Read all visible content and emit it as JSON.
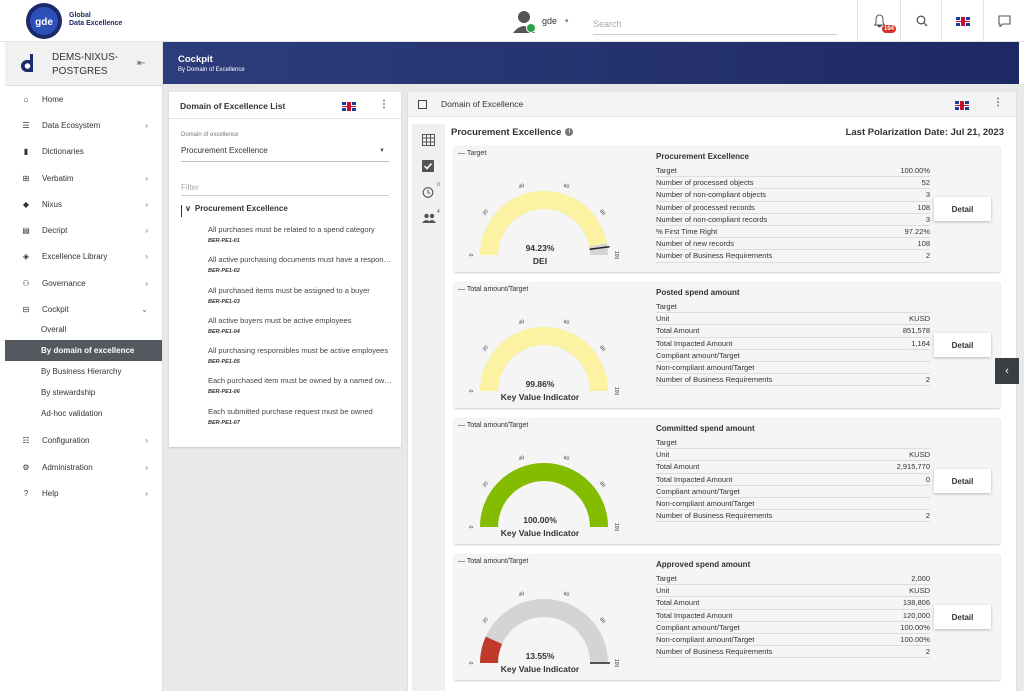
{
  "brand": {
    "line1": "Global",
    "line2": "Data Excellence",
    "logo_text": "gde"
  },
  "topbar": {
    "user_name": "gde",
    "search_placeholder": "Search",
    "notification_count": "104"
  },
  "sidebar": {
    "instance": "DEMS-NIXUS-POSTGRES",
    "items": [
      {
        "label": "Home",
        "icon": "home-icon",
        "glyph": "⌂",
        "has_children": false
      },
      {
        "label": "Data Ecosystem",
        "icon": "list-icon",
        "glyph": "☰",
        "has_children": true
      },
      {
        "label": "Dictionaries",
        "icon": "book-icon",
        "glyph": "▮",
        "has_children": false
      },
      {
        "label": "Verbatim",
        "icon": "open-book-icon",
        "glyph": "⊞",
        "has_children": true
      },
      {
        "label": "Nixus",
        "icon": "cube-icon",
        "glyph": "◆",
        "has_children": true
      },
      {
        "label": "Decript",
        "icon": "document-icon",
        "glyph": "▤",
        "has_children": true
      },
      {
        "label": "Excellence Library",
        "icon": "diamond-icon",
        "glyph": "◈",
        "has_children": true
      },
      {
        "label": "Governance",
        "icon": "people-icon",
        "glyph": "⚇",
        "has_children": true
      },
      {
        "label": "Cockpit",
        "icon": "dashboard-icon",
        "glyph": "⊟",
        "has_children": true,
        "expanded": true
      }
    ],
    "cockpit_sub": [
      "Overall",
      "By domain of excellence",
      "By Business Hierarchy",
      "By stewardship",
      "Ad-hoc validation"
    ],
    "active_sub": "By domain of excellence",
    "items_after": [
      {
        "label": "Configuration",
        "icon": "sliders-icon",
        "glyph": "☷"
      },
      {
        "label": "Administration",
        "icon": "gear-icon",
        "glyph": "⚙"
      },
      {
        "label": "Help",
        "icon": "help-icon",
        "glyph": "?"
      }
    ]
  },
  "header": {
    "title": "Cockpit",
    "subtitle": "By Domain of Excellence"
  },
  "list_panel": {
    "title": "Domain of Excellence List",
    "select_label": "Domain of excellence",
    "select_value": "Procurement Excellence",
    "filter_placeholder": "Filter",
    "tree_root": "Procurement Excellence",
    "rules": [
      {
        "text": "All purchases must be related to a spend category",
        "code": "BER-PE1-01"
      },
      {
        "text": "All active purchasing documents must have a responsible",
        "code": "BER-PE1-02"
      },
      {
        "text": "All purchased items must be assigned to a buyer",
        "code": "BER-PE1-03"
      },
      {
        "text": "All active buyers must be active employees",
        "code": "BER-PE1-04"
      },
      {
        "text": "All purchasing responsibles must be active employees",
        "code": "BER-PE1-05"
      },
      {
        "text": "Each purchased item must be owned by a named owner",
        "code": "BER-PE1-06"
      },
      {
        "text": "Each submitted purchase request must be owned",
        "code": "BER-PE1-07"
      }
    ]
  },
  "main_panel": {
    "title": "Domain of Excellence",
    "section_title": "Procurement Excellence",
    "polarization": "Last Polarization Date: Jul 21, 2023",
    "tool_badges": {
      "alarm": "0",
      "people": "4"
    }
  },
  "cards": [
    {
      "legend": "— Target",
      "gauge": {
        "value": 94.23,
        "label": "94.23%",
        "name": "DEI",
        "fill": "#fbf3a2",
        "rest": "#d4d4d4",
        "marker": 96
      },
      "ticks": [
        "0",
        "20",
        "40",
        "60",
        "80",
        "100"
      ],
      "title": "Procurement Excellence",
      "rows": [
        [
          "Target",
          "100.00%"
        ],
        [
          "Number of processed objects",
          "52"
        ],
        [
          "Number of non-compliant objects",
          "3"
        ],
        [
          "Number of processed records",
          "108"
        ],
        [
          "Number of non-compliant records",
          "3"
        ],
        [
          "% First Time Right",
          "97.22%"
        ],
        [
          "Number of new records",
          "108"
        ],
        [
          "Number of Business Requirements",
          "2"
        ]
      ],
      "detail": "Detail"
    },
    {
      "legend": "— Total amount/Target",
      "gauge": {
        "value": 99.86,
        "label": "99.86%",
        "name": "Key Value Indicator",
        "fill": "#fbf3a2",
        "rest": "#d4d4d4",
        "marker": null
      },
      "ticks": [
        "0",
        "20",
        "40",
        "60",
        "80",
        "100"
      ],
      "title": "Posted spend amount",
      "rows": [
        [
          "Target",
          ""
        ],
        [
          "Unit",
          "KUSD"
        ],
        [
          "Total Amount",
          "851,578"
        ],
        [
          "Total Impacted Amount",
          "1,164"
        ],
        [
          "Compliant amount/Target",
          ""
        ],
        [
          "Non-compliant amount/Target",
          ""
        ],
        [
          "Number of Business Requirements",
          "2"
        ]
      ],
      "detail": "Detail"
    },
    {
      "legend": "— Total amount/Target",
      "gauge": {
        "value": 100,
        "label": "100.00%",
        "name": "Key Value Indicator",
        "fill": "#84bd00",
        "rest": "#d4d4d4",
        "marker": null
      },
      "ticks": [
        "0",
        "20",
        "40",
        "60",
        "80",
        "100"
      ],
      "title": "Committed spend amount",
      "rows": [
        [
          "Target",
          ""
        ],
        [
          "Unit",
          "KUSD"
        ],
        [
          "Total Amount",
          "2,915,770"
        ],
        [
          "Total Impacted Amount",
          "0"
        ],
        [
          "Compliant amount/Target",
          ""
        ],
        [
          "Non-compliant amount/Target",
          ""
        ],
        [
          "Number of Business Requirements",
          "2"
        ]
      ],
      "detail": "Detail"
    },
    {
      "legend": "— Total amount/Target",
      "gauge": {
        "value": 13.55,
        "label": "13.55%",
        "name": "Key Value Indicator",
        "fill": "#c0392b",
        "rest": "#d4d4d4",
        "marker": 100
      },
      "ticks": [
        "0",
        "20",
        "40",
        "60",
        "80",
        "100"
      ],
      "title": "Approved spend amount",
      "rows": [
        [
          "Target",
          "2,000"
        ],
        [
          "Unit",
          "KUSD"
        ],
        [
          "Total Amount",
          "138,806"
        ],
        [
          "Total Impacted Amount",
          "120,000"
        ],
        [
          "Compliant amount/Target",
          "100.00%"
        ],
        [
          "Non-compliant amount/Target",
          "100.00%"
        ],
        [
          "Number of Business Requirements",
          "2"
        ]
      ],
      "detail": "Detail"
    }
  ]
}
